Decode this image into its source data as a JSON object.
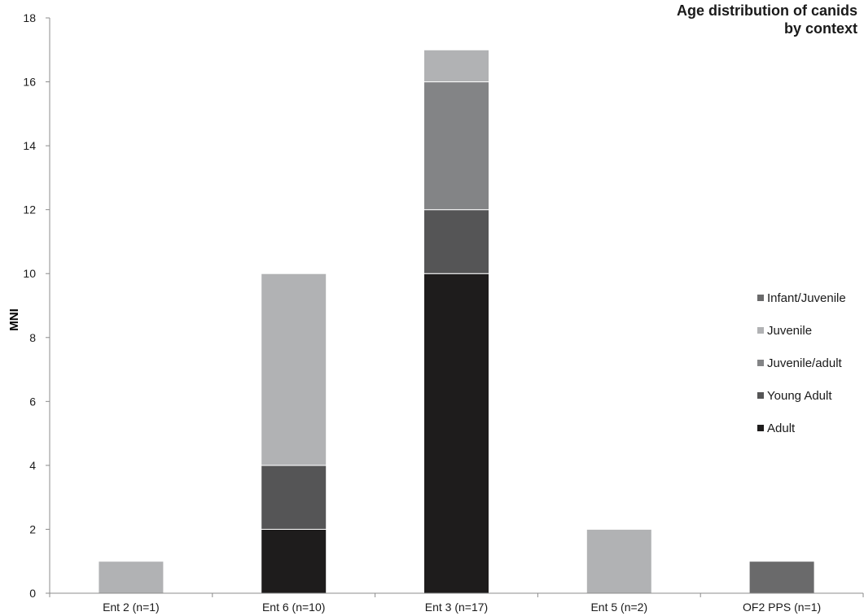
{
  "chart_data": {
    "type": "bar",
    "stacked": true,
    "title_line1": "Age distribution of canids",
    "title_line2": "by context",
    "ylabel": "MNI",
    "xlabel": "",
    "ylim": [
      0,
      18
    ],
    "yticks": [
      0,
      2,
      4,
      6,
      8,
      10,
      12,
      14,
      16,
      18
    ],
    "categories": [
      "Ent 2 (n=1)",
      "Ent 6 (n=10)",
      "Ent 3 (n=17)",
      "Ent 5 (n=2)",
      "OF2 PPS (n=1)"
    ],
    "series": [
      {
        "name": "Adult",
        "color": "#1e1c1c",
        "values": [
          0,
          2,
          10,
          0,
          0
        ]
      },
      {
        "name": "Young Adult",
        "color": "#555556",
        "values": [
          0,
          2,
          2,
          0,
          0
        ]
      },
      {
        "name": "Juvenile/adult",
        "color": "#838486",
        "values": [
          0,
          0,
          4,
          0,
          0
        ]
      },
      {
        "name": "Juvenile",
        "color": "#b1b2b4",
        "values": [
          1,
          6,
          1,
          2,
          0
        ]
      },
      {
        "name": "Infant/Juvenile",
        "color": "#6a6a6b",
        "values": [
          0,
          0,
          0,
          0,
          1
        ]
      }
    ],
    "legend_order": [
      "Infant/Juvenile",
      "Juvenile",
      "Juvenile/adult",
      "Young Adult",
      "Adult"
    ],
    "legend_position": "right",
    "grid": false
  }
}
